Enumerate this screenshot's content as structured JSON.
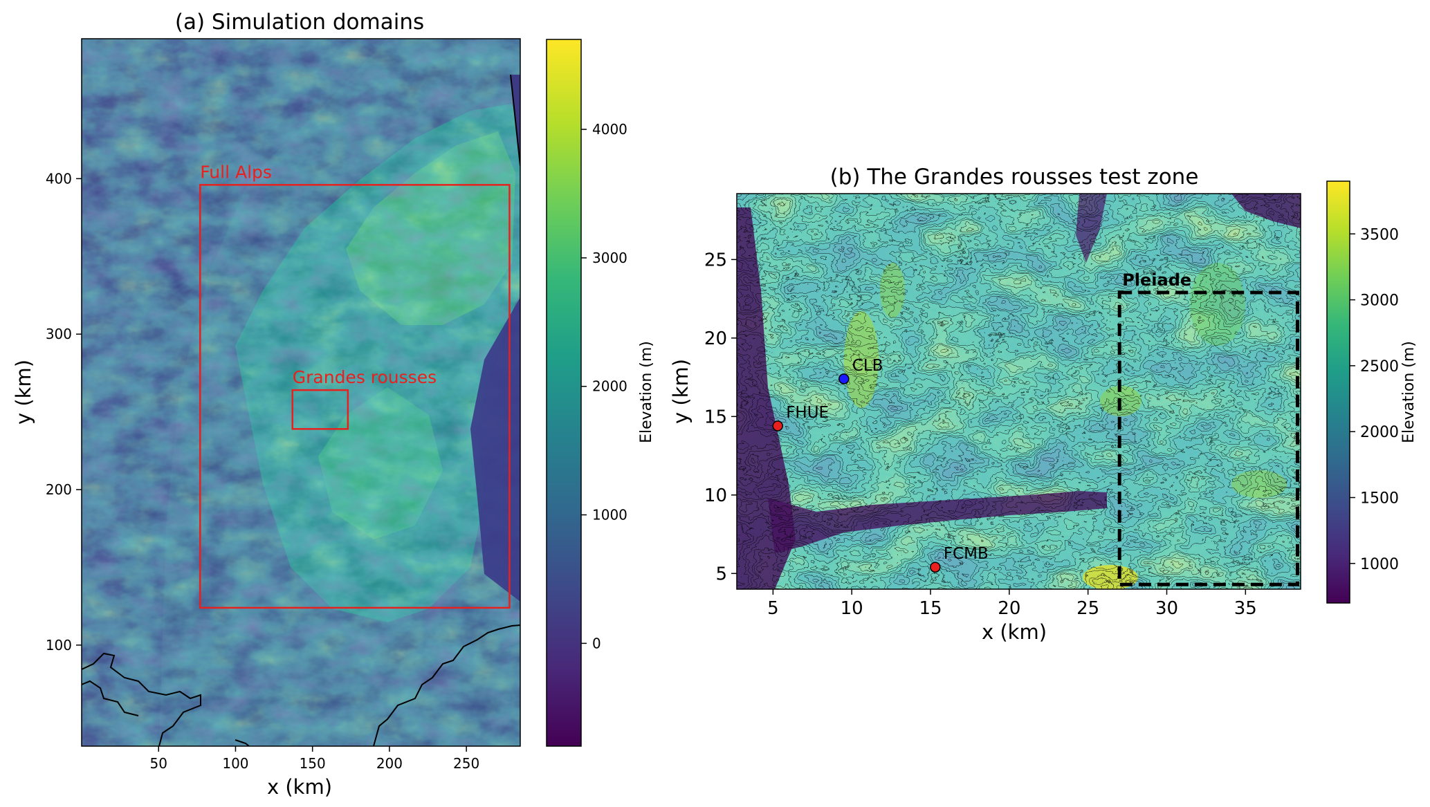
{
  "panel_a": {
    "title": "(a) Simulation domains",
    "xlabel": "x (km)",
    "ylabel": "y (km)",
    "xlim": [
      0,
      285
    ],
    "ylim": [
      35,
      490
    ],
    "xticks": [
      50,
      100,
      150,
      200,
      250
    ],
    "yticks": [
      100,
      200,
      300,
      400
    ],
    "domains": [
      {
        "label": "Full Alps",
        "x0": 77,
        "x1": 278,
        "y0": 124,
        "y1": 396,
        "color": "#e8201e"
      },
      {
        "label": "Grandes rousses",
        "x0": 137,
        "x1": 173,
        "y0": 239,
        "y1": 264,
        "color": "#e8201e"
      }
    ],
    "colorbar": {
      "label": "Elevation (m)",
      "range": [
        -800,
        4700
      ],
      "ticks": [
        0,
        1000,
        2000,
        3000,
        4000
      ]
    }
  },
  "panel_b": {
    "title": "(b) The Grandes rousses test zone",
    "xlabel": "x (km)",
    "ylabel": "y (km)",
    "xlim": [
      2.7,
      38.5
    ],
    "ylim": [
      4,
      29.2
    ],
    "xticks": [
      5,
      10,
      15,
      20,
      25,
      30,
      35
    ],
    "yticks": [
      5,
      10,
      15,
      20,
      25
    ],
    "stations": [
      {
        "label": "CLB",
        "x": 9.5,
        "y": 17.4,
        "color": "#1a1aff"
      },
      {
        "label": "FHUE",
        "x": 5.3,
        "y": 14.4,
        "color": "#e8201e"
      },
      {
        "label": "FCMB",
        "x": 15.3,
        "y": 5.4,
        "color": "#e8201e"
      }
    ],
    "pleiade": {
      "label": "Pleiade",
      "x0": 27.0,
      "x1": 38.3,
      "y0": 4.3,
      "y1": 22.9
    },
    "colorbar": {
      "label": "Elevation (m)",
      "range": [
        700,
        3900
      ],
      "ticks": [
        1000,
        1500,
        2000,
        2500,
        3000,
        3500
      ]
    }
  },
  "colors": {
    "viridis": [
      "#440154",
      "#482878",
      "#3e4989",
      "#31688e",
      "#26828e",
      "#1f9e89",
      "#35b779",
      "#6ece58",
      "#b5de2b",
      "#fde725"
    ],
    "frame": "#000000",
    "domain_box": "#e8201e"
  }
}
